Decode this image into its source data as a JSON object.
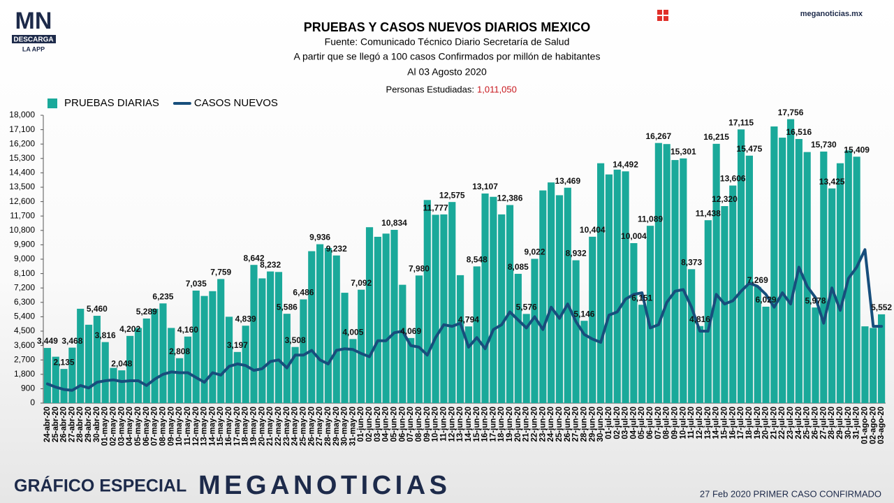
{
  "logo": {
    "mark": "MN",
    "line1": "DESCARGA",
    "line2": "LA APP"
  },
  "site": "meganoticias.mx",
  "footer": {
    "left": "GRÁFICO ESPECIAL",
    "brand": "MEGANOTICIAS",
    "note": "27 Feb 2020 PRIMER CASO CONFIRMADO"
  },
  "chart_data": {
    "type": "bar",
    "title": "PRUEBAS Y CASOS NUEVOS DIARIOS MEXICO",
    "subtitles": [
      "Fuente: Comunicado Técnico Diario Secretaría de Salud",
      "A partir que se llegó a 100 casos Confirmados por millón de habitantes",
      "Al 03 Agosto 2020"
    ],
    "annotation": {
      "label": "Personas Estudiadas:",
      "value": "1,011,050"
    },
    "legend": "top-left",
    "grid": false,
    "ylim": [
      0,
      18000
    ],
    "yticks": [
      0,
      900,
      {
        "value": 1800,
        "label": "1,800"
      },
      {
        "value": 2700,
        "label": "2,700"
      },
      {
        "value": 3600,
        "label": "3,600"
      },
      {
        "value": 4500,
        "label": "4,500"
      },
      {
        "value": 5400,
        "label": "5,400"
      },
      {
        "value": 6300,
        "label": "6,300"
      },
      {
        "value": 7200,
        "label": "7,200"
      },
      {
        "value": 8100,
        "label": "8,100"
      },
      {
        "value": 9000,
        "label": "9,000"
      },
      {
        "value": 9900,
        "label": "9,900"
      },
      {
        "value": 10800,
        "label": "10,800"
      },
      {
        "value": 11700,
        "label": "11,700"
      },
      {
        "value": 12600,
        "label": "12,600"
      },
      {
        "value": 13500,
        "label": "13,500"
      },
      {
        "value": 14400,
        "label": "14,400"
      },
      {
        "value": 15300,
        "label": "15,300"
      },
      {
        "value": 16200,
        "label": "16,200"
      },
      {
        "value": 17100,
        "label": "17,100"
      },
      {
        "value": 18000,
        "label": "18,000"
      }
    ],
    "categories": [
      "24-abr-20",
      "25-abr-20",
      "26-abr-20",
      "27-abr-20",
      "28-abr-20",
      "29-abr-20",
      "30-abr-20",
      "01-may-20",
      "02-may-20",
      "03-may-20",
      "04-may-20",
      "05-may-20",
      "06-may-20",
      "07-may-20",
      "08-may-20",
      "09-may-20",
      "10-may-20",
      "11-may-20",
      "12-may-20",
      "13-may-20",
      "14-may-20",
      "15-may-20",
      "16-may-20",
      "17-may-20",
      "18-may-20",
      "19-may-20",
      "20-may-20",
      "21-may-20",
      "22-may-20",
      "23-may-20",
      "24-may-20",
      "25-may-20",
      "26-may-20",
      "27-may-20",
      "28-may-20",
      "29-may-20",
      "30-may-20",
      "31-may-20",
      "01-jun-20",
      "02-jun-20",
      "03-jun-20",
      "04-jun-20",
      "05-jun-20",
      "06-jun-20",
      "07-jun-20",
      "08-jun-20",
      "09-jun-20",
      "10-jun-20",
      "11-jun-20",
      "12-jun-20",
      "13-jun-20",
      "14-jun-20",
      "15-jun-20",
      "16-jun-20",
      "17-jun-20",
      "18-jun-20",
      "19-jun-20",
      "20-jun-20",
      "21-jun-20",
      "22-jun-20",
      "23-jun-20",
      "24-jun-20",
      "25-jun-20",
      "26-jun-20",
      "27-jun-20",
      "28-jun-20",
      "29-jun-20",
      "30-jun-20",
      "01-jul-20",
      "02-jul-20",
      "03-jul-20",
      "04-jul-20",
      "05-jul-20",
      "06-jul-20",
      "07-jul-20",
      "08-jul-20",
      "09-jul-20",
      "10-jul-20",
      "11-jul-20",
      "12-jul-20",
      "13-jul-20",
      "14-jul-20",
      "15-jul-20",
      "16-jul-20",
      "17-jul-20",
      "18-jul-20",
      "19-jul-20",
      "20-jul-20",
      "21-jul-20",
      "22-jul-20",
      "23-jul-20",
      "24-jul-20",
      "25-jul-20",
      "26-jul-20",
      "27-jul-20",
      "28-jul-20",
      "29-jul-20",
      "30-jul-20",
      "31-jul-20",
      "01-ago-20",
      "02-ago-20",
      "03-ago-20"
    ],
    "series": [
      {
        "name": "PRUEBAS DIARIAS",
        "type": "bar",
        "color": "#1aa99a",
        "values": [
          3449,
          2900,
          2135,
          3468,
          5900,
          4900,
          5460,
          3816,
          2200,
          2048,
          4202,
          4700,
          5289,
          5900,
          6235,
          4700,
          2808,
          4160,
          7035,
          6700,
          7000,
          7759,
          5400,
          3197,
          4839,
          8642,
          7800,
          8232,
          8200,
          5586,
          3508,
          6486,
          9500,
          9936,
          9700,
          9232,
          6900,
          4005,
          7092,
          11000,
          10400,
          10600,
          10834,
          7400,
          4069,
          7980,
          12700,
          11777,
          11800,
          12575,
          8000,
          4794,
          8548,
          13107,
          12900,
          11800,
          12386,
          8085,
          5576,
          9022,
          13300,
          13800,
          13000,
          13469,
          8932,
          5146,
          10404,
          15000,
          14300,
          14600,
          14492,
          10004,
          6151,
          11089,
          16267,
          16200,
          15200,
          15301,
          8373,
          4816,
          11438,
          16215,
          12320,
          13606,
          17115,
          15475,
          7269,
          6029,
          17300,
          16600,
          17756,
          16516,
          15700,
          5978,
          15730,
          13425,
          15000,
          15800,
          15409,
          4800,
          4700,
          5552
        ],
        "value_labels": [
          "3,449",
          null,
          "2,135",
          "3,468",
          null,
          null,
          "5,460",
          "3,816",
          null,
          "2,048",
          "4,202",
          null,
          "5,289",
          null,
          "6,235",
          null,
          "2,808",
          "4,160",
          "7,035",
          null,
          null,
          "7,759",
          null,
          "3,197",
          "4,839",
          "8,642",
          null,
          "8,232",
          null,
          "5,586",
          "3,508",
          "6,486",
          null,
          "9,936",
          null,
          "9,232",
          null,
          "4,005",
          "7,092",
          null,
          null,
          null,
          "10,834",
          null,
          "4,069",
          "7,980",
          null,
          "11,777",
          null,
          "12,575",
          null,
          "4,794",
          "8,548",
          "13,107",
          null,
          null,
          "12,386",
          "8,085",
          "5,576",
          "9,022",
          null,
          null,
          null,
          "13,469",
          "8,932",
          "5,146",
          "10,404",
          null,
          null,
          null,
          "14,492",
          "10,004",
          "6,151",
          "11,089",
          "16,267",
          null,
          null,
          "15,301",
          "8,373",
          "4,816",
          "11,438",
          "16,215",
          "12,320",
          "13,606",
          "17,115",
          "15,475",
          "7,269",
          "6,029",
          null,
          null,
          "17,756",
          "16,516",
          null,
          "5,978",
          "15,730",
          "13,425",
          null,
          null,
          "15,409",
          null,
          null,
          "5,552"
        ]
      },
      {
        "name": "CASOS NUEVOS",
        "type": "line",
        "color": "#174e7c",
        "values": [
          1200,
          1000,
          850,
          800,
          1100,
          950,
          1300,
          1400,
          1450,
          1350,
          1400,
          1400,
          1100,
          1500,
          1800,
          1950,
          1900,
          1900,
          1600,
          1300,
          1900,
          1750,
          2300,
          2450,
          2350,
          2050,
          2150,
          2600,
          2700,
          2200,
          3000,
          3000,
          3300,
          2700,
          2450,
          3300,
          3400,
          3350,
          3100,
          2900,
          3900,
          3900,
          4400,
          4500,
          3600,
          3500,
          3000,
          4100,
          4900,
          4800,
          5000,
          3500,
          4100,
          3400,
          4600,
          4900,
          5700,
          5200,
          4700,
          5400,
          4600,
          6000,
          5300,
          6200,
          5100,
          4300,
          4000,
          3800,
          5500,
          5700,
          6500,
          6800,
          6900,
          4700,
          4900,
          6300,
          7000,
          7100,
          6000,
          4500,
          4500,
          6800,
          6200,
          6400,
          7000,
          7500,
          7300,
          6800,
          6000,
          6900,
          6200,
          8500,
          7300,
          6600,
          5000,
          7200,
          5800,
          7800,
          8500,
          9600,
          4800,
          4800
        ]
      }
    ]
  }
}
